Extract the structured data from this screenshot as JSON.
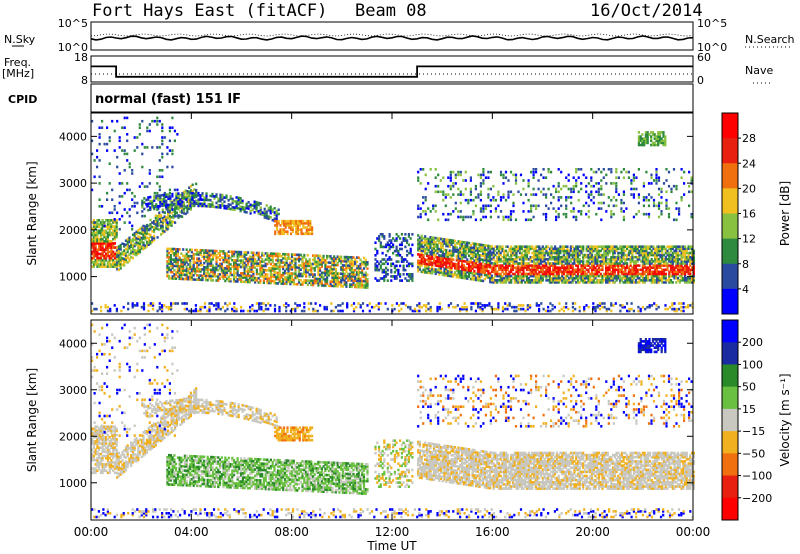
{
  "header": {
    "station": "Fort Hays East (fitACF)",
    "beam": "Beam 08",
    "date": "16/Oct/2014"
  },
  "side_labels": {
    "nsky": "N.Sky",
    "nsearch": "N.Search",
    "freq": "Freq.",
    "freq_unit": "[MHz]",
    "nave": "Nave",
    "cpid": "CPID"
  },
  "cpid_text": "normal (fast) 151 IF",
  "chart_data": [
    {
      "type": "line",
      "name": "noise-panel",
      "left_ticks": [
        "10^5",
        "10^0"
      ],
      "right_ticks": [
        "10^5",
        "10^0"
      ],
      "description_series": [
        "N.Sky",
        "N.Search"
      ]
    },
    {
      "type": "line",
      "name": "freq-panel",
      "left_ticks": [
        "18",
        "8"
      ],
      "right_ticks": [
        "60",
        "0"
      ],
      "freq_steps": [
        {
          "x": 0.0,
          "y": 14
        },
        {
          "x": 1.0,
          "y": 14
        },
        {
          "x": 1.0,
          "y": 10
        },
        {
          "x": 13.0,
          "y": 10
        },
        {
          "x": 13.0,
          "y": 14
        },
        {
          "x": 24.0,
          "y": 14
        }
      ],
      "freq_ylim": [
        8,
        18
      ]
    },
    {
      "type": "heatmap",
      "name": "power-panel",
      "ylabel": "Slant Range [km]",
      "ylim": [
        200,
        4500
      ],
      "yticks": [
        1000,
        2000,
        3000,
        4000
      ],
      "colorbar_label": "Power [dB]",
      "colorbar_ticks": [
        "28",
        "24",
        "20",
        "16",
        "12",
        "8",
        "4"
      ],
      "colors": [
        "#0000ff",
        "#2a4aa0",
        "#2e8a3e",
        "#88c040",
        "#f0c020",
        "#f07010",
        "#e82010",
        "#ff0000"
      ]
    },
    {
      "type": "heatmap",
      "name": "velocity-panel",
      "ylabel": "Slant Range [km]",
      "ylim": [
        200,
        4500
      ],
      "yticks": [
        1000,
        2000,
        3000,
        4000
      ],
      "colorbar_label": "Velocity [m s⁻¹]",
      "colorbar_ticks": [
        "200",
        "100",
        "50",
        "15",
        "−15",
        "−50",
        "−100",
        "−200"
      ],
      "colors": [
        "#0000ff",
        "#1a2aa0",
        "#2a8a2a",
        "#6ac040",
        "#c8c8c0",
        "#f0b020",
        "#f07010",
        "#e82010",
        "#ff0000"
      ],
      "xlabel": "Time UT",
      "xticks": [
        "00:00",
        "04:00",
        "08:00",
        "12:00",
        "16:00",
        "20:00",
        "00:00"
      ],
      "xlim": [
        0,
        24
      ]
    }
  ]
}
